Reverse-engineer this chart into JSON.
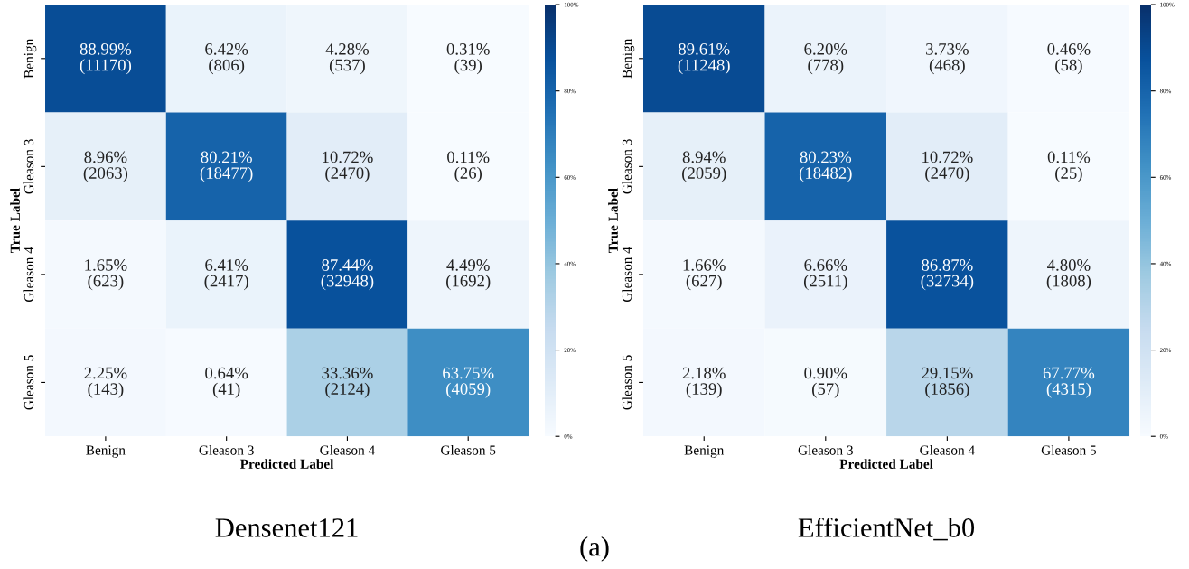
{
  "chart_data": [
    {
      "type": "heatmap",
      "title": "Densenet121",
      "xlabel": "Predicted Label",
      "ylabel": "True Label",
      "categories": [
        "Benign",
        "Gleason 3",
        "Gleason 4",
        "Gleason 5"
      ],
      "y_categories": [
        "Benign",
        "Gleason 3",
        "Gleason 4",
        "Gleason 5"
      ],
      "cells": [
        [
          88.99,
          6.42,
          4.28,
          0.31
        ],
        [
          8.96,
          80.21,
          10.72,
          0.11
        ],
        [
          1.65,
          6.41,
          87.44,
          4.49
        ],
        [
          2.25,
          0.64,
          33.36,
          63.75
        ]
      ],
      "cell_labels": [
        [
          "88.99%\n(11170)",
          "6.42%\n(806)",
          "4.28%\n(537)",
          "0.31%\n(39)"
        ],
        [
          "8.96%\n(2063)",
          "80.21%\n(18477)",
          "10.72%\n(2470)",
          "0.11%\n(26)"
        ],
        [
          "1.65%\n(623)",
          "6.41%\n(2417)",
          "87.44%\n(32948)",
          "4.49%\n(1692)"
        ],
        [
          "2.25%\n(143)",
          "0.64%\n(41)",
          "33.36%\n(2124)",
          "63.75%\n(4059)"
        ]
      ],
      "clim": [
        0,
        100
      ],
      "cticks": [
        {
          "value": 0,
          "label": "0%"
        },
        {
          "value": 20,
          "label": "20%"
        },
        {
          "value": 40,
          "label": "40%"
        },
        {
          "value": 60,
          "label": "60%"
        },
        {
          "value": 80,
          "label": "80%"
        },
        {
          "value": 100,
          "label": "100%"
        }
      ]
    },
    {
      "type": "heatmap",
      "title": "EfficientNet_b0",
      "xlabel": "Predicted Label",
      "ylabel": "True Label",
      "categories": [
        "Benign",
        "Gleason 3",
        "Gleason 4",
        "Gleason 5"
      ],
      "y_categories": [
        "Benign",
        "Gleason 3",
        "Gleason 4",
        "Gleason 5"
      ],
      "cells": [
        [
          89.61,
          6.2,
          3.73,
          0.46
        ],
        [
          8.94,
          80.23,
          10.72,
          0.11
        ],
        [
          1.66,
          6.66,
          86.87,
          4.8
        ],
        [
          2.18,
          0.9,
          29.15,
          67.77
        ]
      ],
      "cell_labels": [
        [
          "89.61%\n(11248)",
          "6.20%\n(778)",
          "3.73%\n(468)",
          "0.46%\n(58)"
        ],
        [
          "8.94%\n(2059)",
          "80.23%\n(18482)",
          "10.72%\n(2470)",
          "0.11%\n(25)"
        ],
        [
          "1.66%\n(627)",
          "6.66%\n(2511)",
          "86.87%\n(32734)",
          "4.80%\n(1808)"
        ],
        [
          "2.18%\n(139)",
          "0.90%\n(57)",
          "29.15%\n(1856)",
          "67.77%\n(4315)"
        ]
      ],
      "clim": [
        0,
        100
      ],
      "cticks": [
        {
          "value": 0,
          "label": "0%"
        },
        {
          "value": 20,
          "label": "20%"
        },
        {
          "value": 40,
          "label": "40%"
        },
        {
          "value": 60,
          "label": "60%"
        },
        {
          "value": 80,
          "label": "80%"
        },
        {
          "value": 100,
          "label": "100%"
        }
      ],
      "annotations": [
        "(a)"
      ]
    }
  ]
}
